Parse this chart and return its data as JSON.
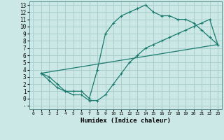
{
  "xlabel": "Humidex (Indice chaleur)",
  "bg_color": "#cce8e6",
  "grid_color": "#aacfcc",
  "line_color": "#1a7a6e",
  "xlim": [
    -0.5,
    23.5
  ],
  "ylim": [
    -1.5,
    13.5
  ],
  "xticks": [
    0,
    1,
    2,
    3,
    4,
    5,
    6,
    7,
    8,
    9,
    10,
    11,
    12,
    13,
    14,
    15,
    16,
    17,
    18,
    19,
    20,
    21,
    22,
    23
  ],
  "yticks": [
    -1,
    0,
    1,
    2,
    3,
    4,
    5,
    6,
    7,
    8,
    9,
    10,
    11,
    12,
    13
  ],
  "curve1_x": [
    1,
    2,
    3,
    4,
    5,
    6,
    7,
    8,
    9,
    10,
    11,
    12,
    13,
    14,
    15,
    16,
    17,
    18,
    19,
    20,
    21,
    22,
    23
  ],
  "curve1_y": [
    3.5,
    3.0,
    2.0,
    1.0,
    1.0,
    1.0,
    0.0,
    4.0,
    9.0,
    10.5,
    11.5,
    12.0,
    12.5,
    13.0,
    12.0,
    11.5,
    11.5,
    11.0,
    11.0,
    10.5,
    9.5,
    8.5,
    7.5
  ],
  "curve2_x": [
    1,
    2,
    3,
    4,
    5,
    6,
    7,
    8,
    9,
    10,
    11,
    12,
    13,
    14,
    15,
    16,
    17,
    18,
    19,
    20,
    21,
    22,
    23
  ],
  "curve2_y": [
    3.5,
    2.5,
    1.5,
    1.0,
    0.5,
    0.5,
    -0.3,
    -0.3,
    0.5,
    2.0,
    3.5,
    5.0,
    6.0,
    7.0,
    7.5,
    8.0,
    8.5,
    9.0,
    9.5,
    10.0,
    10.5,
    11.0,
    7.5
  ],
  "curve3_x": [
    1,
    23
  ],
  "curve3_y": [
    3.5,
    7.5
  ]
}
